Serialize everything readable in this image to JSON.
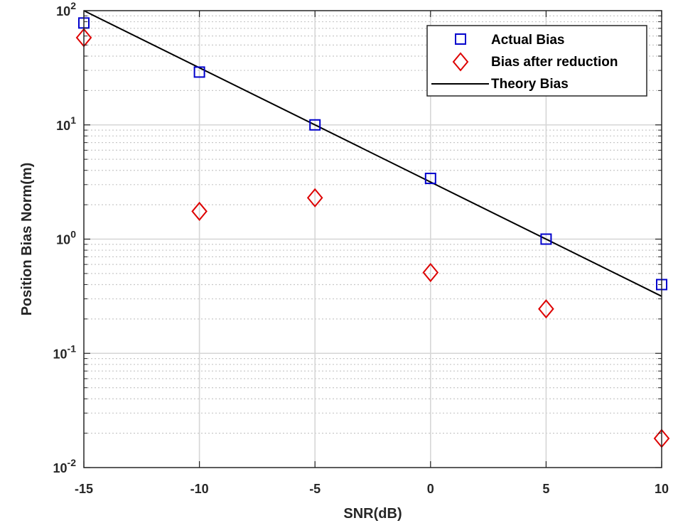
{
  "chart_data": {
    "type": "scatter",
    "xlabel": "SNR(dB)",
    "ylabel": "Position Bias Norm(m)",
    "x_scale": "linear",
    "y_scale": "log",
    "xlim": [
      -15,
      10
    ],
    "ylim": [
      0.01,
      100
    ],
    "x_ticks": [
      -15,
      -10,
      -5,
      0,
      5,
      10
    ],
    "x_tick_labels": [
      "-15",
      "-10",
      "-5",
      "0",
      "5",
      "10"
    ],
    "y_ticks": [
      0.01,
      0.1,
      1,
      10,
      100
    ],
    "y_tick_labels": [
      {
        "base": "10",
        "exp": "-2"
      },
      {
        "base": "10",
        "exp": "-1"
      },
      {
        "base": "10",
        "exp": "0"
      },
      {
        "base": "10",
        "exp": "1"
      },
      {
        "base": "10",
        "exp": "2"
      }
    ],
    "grid": true,
    "minor_grid": true,
    "legend_position": "top-right",
    "series": [
      {
        "name": "Actual Bias",
        "kind": "markers",
        "marker": "square",
        "color": "#0000CC",
        "x": [
          -15,
          -10,
          -5,
          0,
          5,
          10
        ],
        "y": [
          78,
          29,
          10,
          3.4,
          1.0,
          0.4
        ]
      },
      {
        "name": "Bias after reduction",
        "kind": "markers",
        "marker": "diamond",
        "color": "#DD0000",
        "x": [
          -15,
          -10,
          -5,
          0,
          5,
          10
        ],
        "y": [
          58,
          1.75,
          2.3,
          0.51,
          0.245,
          0.018
        ]
      },
      {
        "name": "Theory Bias",
        "kind": "line",
        "color": "#000000",
        "x": [
          -15,
          10
        ],
        "y": [
          100,
          0.316
        ]
      }
    ]
  }
}
